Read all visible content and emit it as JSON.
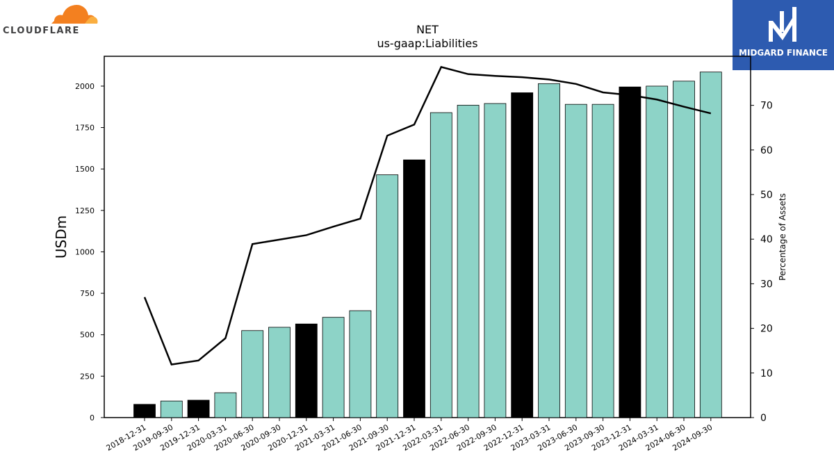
{
  "logos": {
    "left": {
      "name": "CLOUDFLARE",
      "color": "#f38020"
    },
    "right": {
      "name": "MIDGARD FINANCE",
      "color": "#2d5bb0"
    }
  },
  "chart_data": {
    "type": "bar",
    "title": "NET",
    "subtitle": "us-gaap:Liabilities",
    "ylabel": "USDm",
    "y2label": "Percentage of Assets",
    "ylim": [
      0,
      2180
    ],
    "y2lim": [
      0,
      81
    ],
    "yticks": [
      0,
      250,
      500,
      750,
      1000,
      1250,
      1500,
      1750,
      2000
    ],
    "y2ticks": [
      0,
      10,
      20,
      30,
      40,
      50,
      60,
      70
    ],
    "categories": [
      "2018-12-31",
      "2019-09-30",
      "2019-12-31",
      "2020-03-31",
      "2020-06-30",
      "2020-09-30",
      "2020-12-31",
      "2021-03-31",
      "2021-06-30",
      "2021-09-30",
      "2021-12-31",
      "2022-03-31",
      "2022-06-30",
      "2022-09-30",
      "2022-12-31",
      "2023-03-31",
      "2023-06-30",
      "2023-09-30",
      "2023-12-31",
      "2024-03-31",
      "2024-06-30",
      "2024-09-30"
    ],
    "series": [
      {
        "type": "bar",
        "axis": "left",
        "values": [
          80,
          100,
          105,
          150,
          525,
          545,
          565,
          605,
          645,
          1465,
          1555,
          1840,
          1885,
          1895,
          1960,
          2015,
          1890,
          1890,
          1995,
          2000,
          2030,
          2085
        ],
        "fills": [
          "#000000",
          "#8dd3c7",
          "#000000",
          "#8dd3c7",
          "#8dd3c7",
          "#8dd3c7",
          "#000000",
          "#8dd3c7",
          "#8dd3c7",
          "#8dd3c7",
          "#000000",
          "#8dd3c7",
          "#8dd3c7",
          "#8dd3c7",
          "#000000",
          "#8dd3c7",
          "#8dd3c7",
          "#8dd3c7",
          "#000000",
          "#8dd3c7",
          "#8dd3c7",
          "#8dd3c7"
        ]
      },
      {
        "type": "line",
        "axis": "right",
        "color": "#000000",
        "values": [
          27.0,
          11.9,
          12.8,
          17.8,
          38.9,
          39.9,
          40.9,
          42.8,
          44.6,
          63.2,
          65.7,
          78.6,
          77.0,
          76.6,
          76.3,
          75.8,
          74.8,
          72.9,
          72.3,
          71.3,
          69.7,
          68.2
        ]
      }
    ]
  }
}
